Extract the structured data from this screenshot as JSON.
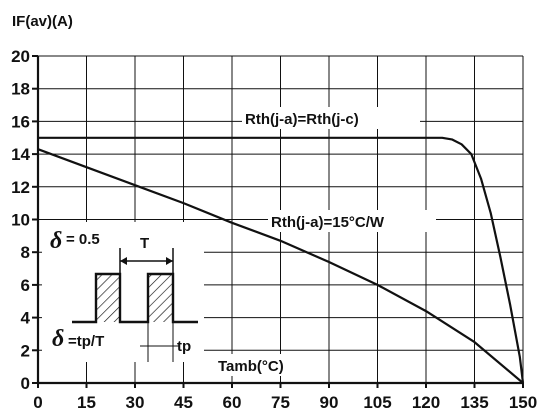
{
  "chart_data": {
    "type": "line",
    "title": "",
    "ylabel": "IF(av)(A)",
    "xlabel": "Tamb(°C)",
    "xlim": [
      0,
      150
    ],
    "ylim": [
      0,
      20
    ],
    "x_ticks": [
      0,
      15,
      30,
      45,
      60,
      75,
      90,
      105,
      120,
      135,
      150
    ],
    "y_ticks": [
      0,
      2,
      4,
      6,
      8,
      10,
      12,
      14,
      16,
      18,
      20
    ],
    "grid": true,
    "series": [
      {
        "name": "Rth(j-a)=Rth(j-c)",
        "x": [
          0,
          125,
          128,
          131,
          134,
          137,
          140,
          143,
          146,
          149,
          150
        ],
        "y": [
          15,
          15,
          14.9,
          14.6,
          14.0,
          12.5,
          10.4,
          7.7,
          4.8,
          1.6,
          0
        ]
      },
      {
        "name": "Rth(j-a)=15°C/W",
        "x": [
          0,
          15,
          30,
          45,
          60,
          75,
          90,
          105,
          120,
          135,
          150
        ],
        "y": [
          14.3,
          13.2,
          12.1,
          11.0,
          9.8,
          8.7,
          7.4,
          6.0,
          4.4,
          2.5,
          0
        ]
      }
    ]
  },
  "inset": {
    "delta_symbol": "δ",
    "delta_value": "= 0.5",
    "period_label": "T",
    "duty_formula": "=tp/T",
    "pulse_label": "tp"
  }
}
